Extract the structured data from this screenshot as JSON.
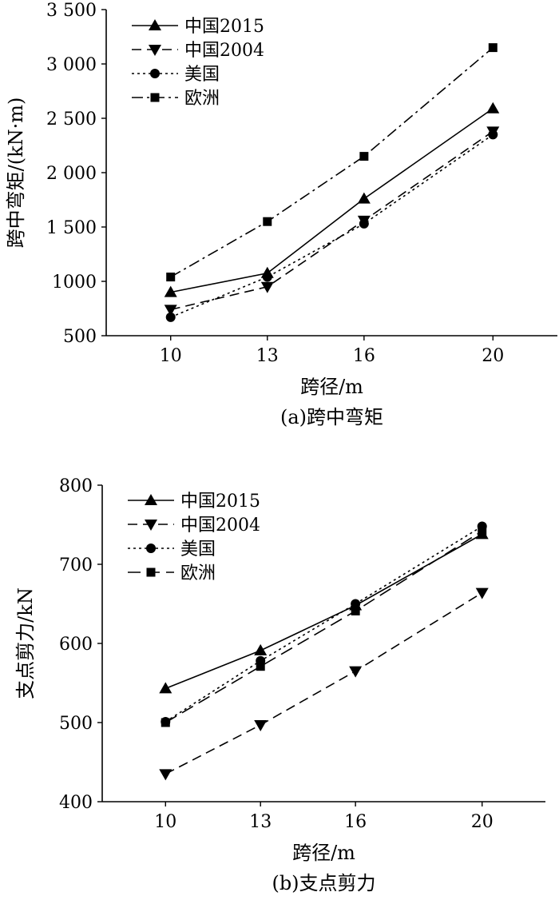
{
  "chart_data": [
    {
      "type": "line",
      "title": "",
      "caption": "(a)跨中弯矩",
      "xlabel": "跨径/m",
      "ylabel": "跨中弯矩/(kN·m)",
      "categories": [
        "10",
        "13",
        "16",
        "20"
      ],
      "x": [
        10,
        13,
        16,
        20
      ],
      "xlim": [
        8,
        22
      ],
      "ylim": [
        500,
        3500
      ],
      "yticks": [
        500,
        1000,
        1500,
        2000,
        2500,
        3000,
        3500
      ],
      "ytick_labels": [
        "500",
        "1000",
        "1 500",
        "2 000",
        "2 500",
        "3 000",
        "3 500"
      ],
      "grid": false,
      "legend_position": "top-left",
      "series": [
        {
          "name": "中国2015",
          "marker": "triangle-up",
          "dash": "solid",
          "values": [
            900,
            1075,
            1760,
            2590
          ]
        },
        {
          "name": "中国2004",
          "marker": "triangle-down",
          "dash": "dashed",
          "values": [
            740,
            950,
            1560,
            2380
          ]
        },
        {
          "name": "美国",
          "marker": "circle",
          "dash": "dotted",
          "values": [
            670,
            1040,
            1530,
            2350
          ]
        },
        {
          "name": "欧洲",
          "marker": "square",
          "dash": "dashdot",
          "values": [
            1040,
            1550,
            2150,
            3150
          ]
        }
      ]
    },
    {
      "type": "line",
      "title": "",
      "caption": "(b)支点剪力",
      "xlabel": "跨径/m",
      "ylabel": "支点剪力/kN",
      "categories": [
        "10",
        "13",
        "16",
        "20"
      ],
      "x": [
        10,
        13,
        16,
        20
      ],
      "xlim": [
        8,
        22
      ],
      "ylim": [
        400,
        800
      ],
      "yticks": [
        400,
        500,
        600,
        700,
        800
      ],
      "ytick_labels": [
        "400",
        "500",
        "600",
        "700",
        "800"
      ],
      "grid": false,
      "legend_position": "top-left",
      "series": [
        {
          "name": "中国2015",
          "marker": "triangle-up",
          "dash": "solid",
          "values": [
            543,
            591,
            648,
            738
          ]
        },
        {
          "name": "中国2004",
          "marker": "triangle-down",
          "dash": "dashed",
          "values": [
            435,
            497,
            565,
            664
          ]
        },
        {
          "name": "美国",
          "marker": "circle",
          "dash": "dotted",
          "values": [
            501,
            578,
            650,
            748
          ]
        },
        {
          "name": "欧洲",
          "marker": "square",
          "dash": "longdash",
          "values": [
            500,
            571,
            641,
            742
          ]
        }
      ]
    }
  ]
}
